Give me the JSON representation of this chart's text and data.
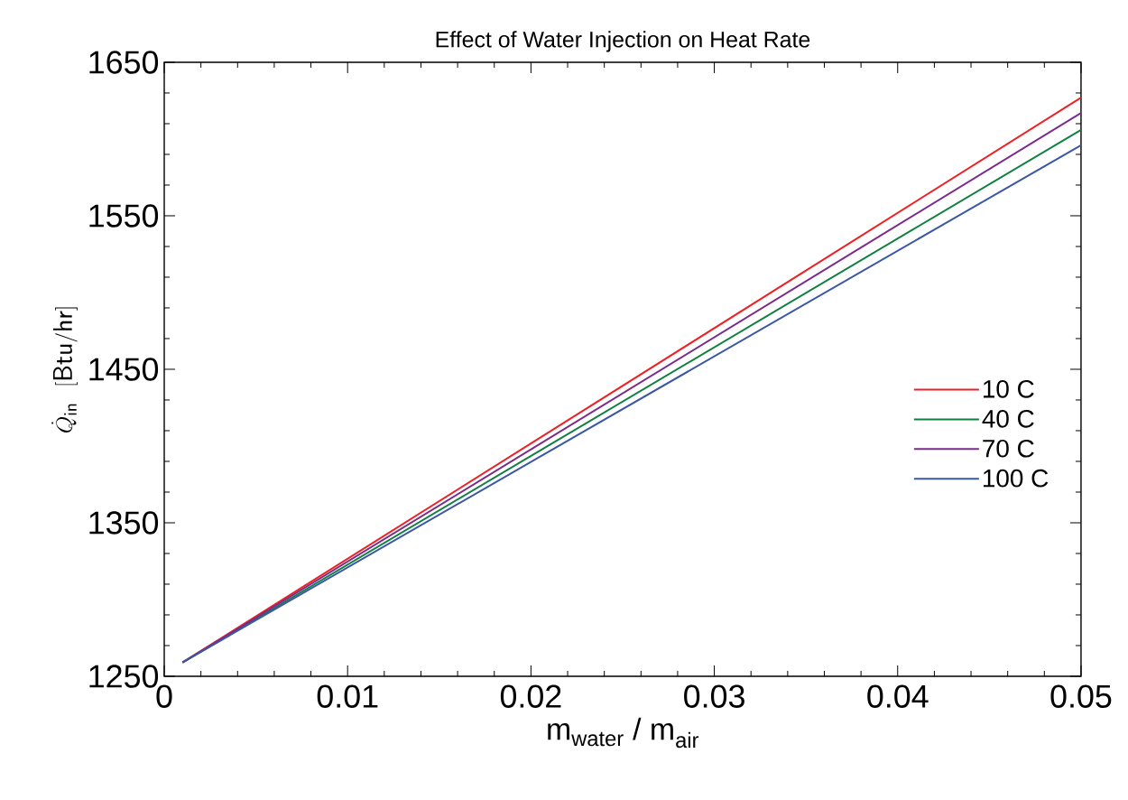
{
  "chart_data": {
    "type": "line",
    "title": "Effect of Water Injection on Heat Rate",
    "xlabel": "m$_{water}$ / m$_{air}$",
    "ylabel": "\\dot{Q}_{\\mathsf{in}}\\ \\ \\mathsf{[Btu/hr]}",
    "x": [
      0.001,
      0.05
    ],
    "series": [
      {
        "name": "10 C",
        "color": "#ee2024",
        "values": [
          1259,
          1627
        ]
      },
      {
        "name": "40 C",
        "color": "#0f8040",
        "values": [
          1259,
          1606
        ]
      },
      {
        "name": "70 C",
        "color": "#7b2a8c",
        "values": [
          1259,
          1617
        ]
      },
      {
        "name": "100 C",
        "color": "#3a56a6",
        "values": [
          1259,
          1596
        ]
      }
    ],
    "xlim": [
      0,
      0.05
    ],
    "ylim": [
      1250,
      1650
    ],
    "xticks": [
      0,
      0.01,
      0.02,
      0.03,
      0.04,
      0.05
    ],
    "yticks": [
      1250,
      1350,
      1450,
      1550,
      1650
    ],
    "grid": false,
    "legend": "right",
    "marker": "none",
    "line_style": "solid"
  }
}
